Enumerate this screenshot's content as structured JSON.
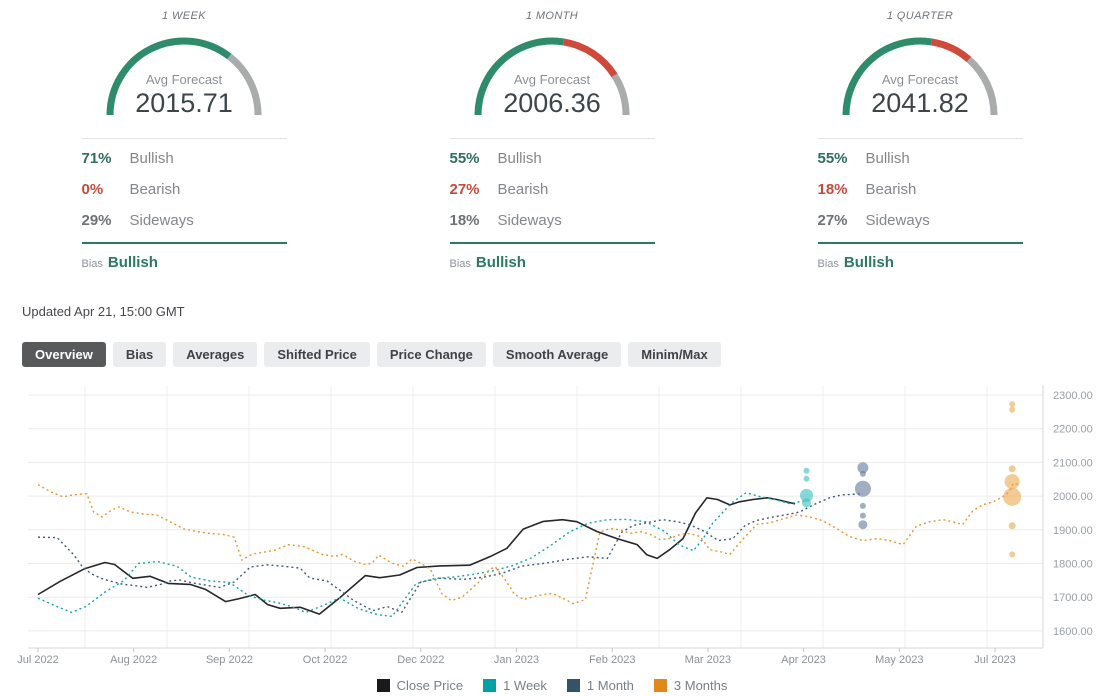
{
  "forecast_panels": [
    {
      "title": "1 WEEK",
      "avg_label": "Avg Forecast",
      "avg_forecast": "2015.71",
      "gauge": {
        "bullish": 71,
        "bearish": 0,
        "sideways": 29
      },
      "stats": [
        {
          "pct": "71%",
          "label": "Bullish"
        },
        {
          "pct": "0%",
          "label": "Bearish"
        },
        {
          "pct": "29%",
          "label": "Sideways"
        }
      ],
      "bias_label": "Bias",
      "bias": "Bullish"
    },
    {
      "title": "1 MONTH",
      "avg_label": "Avg Forecast",
      "avg_forecast": "2006.36",
      "gauge": {
        "bullish": 55,
        "bearish": 27,
        "sideways": 18
      },
      "stats": [
        {
          "pct": "55%",
          "label": "Bullish"
        },
        {
          "pct": "27%",
          "label": "Bearish"
        },
        {
          "pct": "18%",
          "label": "Sideways"
        }
      ],
      "bias_label": "Bias",
      "bias": "Bullish"
    },
    {
      "title": "1 QUARTER",
      "avg_label": "Avg Forecast",
      "avg_forecast": "2041.82",
      "gauge": {
        "bullish": 55,
        "bearish": 18,
        "sideways": 27
      },
      "stats": [
        {
          "pct": "55%",
          "label": "Bullish"
        },
        {
          "pct": "18%",
          "label": "Bearish"
        },
        {
          "pct": "27%",
          "label": "Sideways"
        }
      ],
      "bias_label": "Bias",
      "bias": "Bullish"
    }
  ],
  "updated": "Updated Apr 21, 15:00 GMT",
  "tabs": [
    {
      "label": "Overview",
      "active": true
    },
    {
      "label": "Bias",
      "active": false
    },
    {
      "label": "Averages",
      "active": false
    },
    {
      "label": "Shifted Price",
      "active": false
    },
    {
      "label": "Price Change",
      "active": false
    },
    {
      "label": "Smooth Average",
      "active": false
    },
    {
      "label": "Minim/Max",
      "active": false
    }
  ],
  "colors": {
    "gauge_bullish": "#2e8c6a",
    "gauge_bearish": "#cf4a3a",
    "gauge_sideways": "#a9abae",
    "accent_teal": "#2c7a66",
    "active_tab_bg": "#58595b"
  },
  "chart_data": {
    "type": "line",
    "x_unit": "tick-index (0 = Jul 2022 ... 10 = Jul 2023)",
    "x_ticks": [
      "Jul 2022",
      "Aug 2022",
      "Sep 2022",
      "Oct 2022",
      "Dec 2022",
      "Jan 2023",
      "Feb 2023",
      "Mar 2023",
      "Apr 2023",
      "May 2023",
      "Jul 2023"
    ],
    "y_ticks": [
      {
        "value": 2300,
        "label": "2300.00"
      },
      {
        "value": 2200,
        "label": "2200.00"
      },
      {
        "value": 2100,
        "label": "2100.00"
      },
      {
        "value": 2000,
        "label": "2000.00"
      },
      {
        "value": 1900,
        "label": "1900.00"
      },
      {
        "value": 1800,
        "label": "1800.00"
      },
      {
        "value": 1700,
        "label": "1700.00"
      },
      {
        "value": 1600,
        "label": "1600.00"
      }
    ],
    "ylim": [
      1575,
      2330
    ],
    "grid": true,
    "legend_position": "bottom",
    "series": [
      {
        "name": "Close Price",
        "color": "#26262b",
        "style": "solid",
        "points": [
          [
            0,
            1708
          ],
          [
            0.23,
            1747
          ],
          [
            0.49,
            1785
          ],
          [
            0.7,
            1803
          ],
          [
            0.8,
            1797
          ],
          [
            0.99,
            1756
          ],
          [
            1.17,
            1762
          ],
          [
            1.36,
            1741
          ],
          [
            1.59,
            1738
          ],
          [
            1.75,
            1723
          ],
          [
            1.96,
            1687
          ],
          [
            2.11,
            1696
          ],
          [
            2.27,
            1708
          ],
          [
            2.4,
            1678
          ],
          [
            2.53,
            1667
          ],
          [
            2.74,
            1670
          ],
          [
            2.94,
            1650
          ],
          [
            3.16,
            1700
          ],
          [
            3.42,
            1764
          ],
          [
            3.57,
            1758
          ],
          [
            3.78,
            1766
          ],
          [
            3.96,
            1788
          ],
          [
            4.2,
            1793
          ],
          [
            4.51,
            1795
          ],
          [
            4.72,
            1820
          ],
          [
            4.9,
            1845
          ],
          [
            5.07,
            1902
          ],
          [
            5.28,
            1925
          ],
          [
            5.48,
            1930
          ],
          [
            5.63,
            1924
          ],
          [
            5.84,
            1895
          ],
          [
            6.05,
            1874
          ],
          [
            6.26,
            1856
          ],
          [
            6.36,
            1826
          ],
          [
            6.47,
            1815
          ],
          [
            6.6,
            1841
          ],
          [
            6.74,
            1874
          ],
          [
            6.87,
            1950
          ],
          [
            6.99,
            1995
          ],
          [
            7.1,
            1990
          ],
          [
            7.23,
            1974
          ],
          [
            7.33,
            1983
          ],
          [
            7.47,
            1990
          ],
          [
            7.62,
            1995
          ],
          [
            7.72,
            1990
          ],
          [
            7.91,
            1977
          ]
        ]
      },
      {
        "name": "1 Week",
        "color": "#14a3a6",
        "style": "dotted",
        "points": [
          [
            0,
            1697
          ],
          [
            0.2,
            1672
          ],
          [
            0.35,
            1655
          ],
          [
            0.5,
            1672
          ],
          [
            0.7,
            1715
          ],
          [
            0.9,
            1750
          ],
          [
            1.05,
            1800
          ],
          [
            1.25,
            1806
          ],
          [
            1.45,
            1792
          ],
          [
            1.6,
            1760
          ],
          [
            1.8,
            1748
          ],
          [
            2.0,
            1744
          ],
          [
            2.2,
            1705
          ],
          [
            2.35,
            1692
          ],
          [
            2.5,
            1684
          ],
          [
            2.65,
            1672
          ],
          [
            2.8,
            1655
          ],
          [
            3.0,
            1678
          ],
          [
            3.15,
            1698
          ],
          [
            3.35,
            1666
          ],
          [
            3.55,
            1648
          ],
          [
            3.7,
            1643
          ],
          [
            3.95,
            1740
          ],
          [
            4.15,
            1756
          ],
          [
            4.35,
            1760
          ],
          [
            4.55,
            1768
          ],
          [
            4.75,
            1778
          ],
          [
            4.95,
            1793
          ],
          [
            5.15,
            1816
          ],
          [
            5.35,
            1852
          ],
          [
            5.55,
            1893
          ],
          [
            5.75,
            1920
          ],
          [
            5.95,
            1930
          ],
          [
            6.15,
            1931
          ],
          [
            6.35,
            1924
          ],
          [
            6.55,
            1895
          ],
          [
            6.7,
            1855
          ],
          [
            6.85,
            1838
          ],
          [
            6.95,
            1874
          ],
          [
            7.05,
            1920
          ],
          [
            7.15,
            1950
          ],
          [
            7.25,
            1980
          ],
          [
            7.4,
            2010
          ],
          [
            7.55,
            1998
          ],
          [
            7.7,
            1990
          ],
          [
            7.85,
            1978
          ],
          [
            8.0,
            1985
          ]
        ]
      },
      {
        "name": "1 Month",
        "color": "#3d5a79",
        "style": "dotted",
        "points": [
          [
            0,
            1878
          ],
          [
            0.2,
            1877
          ],
          [
            0.37,
            1827
          ],
          [
            0.46,
            1792
          ],
          [
            0.55,
            1771
          ],
          [
            0.65,
            1757
          ],
          [
            0.75,
            1748
          ],
          [
            0.89,
            1738
          ],
          [
            1.0,
            1735
          ],
          [
            1.14,
            1729
          ],
          [
            1.28,
            1738
          ],
          [
            1.38,
            1748
          ],
          [
            1.48,
            1751
          ],
          [
            1.62,
            1742
          ],
          [
            1.77,
            1735
          ],
          [
            1.9,
            1729
          ],
          [
            2.05,
            1745
          ],
          [
            2.22,
            1790
          ],
          [
            2.4,
            1796
          ],
          [
            2.56,
            1792
          ],
          [
            2.74,
            1786
          ],
          [
            2.84,
            1757
          ],
          [
            3.02,
            1748
          ],
          [
            3.16,
            1720
          ],
          [
            3.3,
            1690
          ],
          [
            3.5,
            1660
          ],
          [
            3.65,
            1672
          ],
          [
            3.8,
            1655
          ],
          [
            4.0,
            1745
          ],
          [
            4.2,
            1756
          ],
          [
            4.45,
            1753
          ],
          [
            4.65,
            1759
          ],
          [
            4.85,
            1771
          ],
          [
            5.05,
            1792
          ],
          [
            5.3,
            1801
          ],
          [
            5.55,
            1813
          ],
          [
            5.75,
            1820
          ],
          [
            5.95,
            1815
          ],
          [
            6.1,
            1893
          ],
          [
            6.22,
            1913
          ],
          [
            6.4,
            1923
          ],
          [
            6.53,
            1930
          ],
          [
            6.68,
            1924
          ],
          [
            6.81,
            1915
          ],
          [
            6.95,
            1897
          ],
          [
            7.11,
            1868
          ],
          [
            7.26,
            1874
          ],
          [
            7.39,
            1913
          ],
          [
            7.51,
            1928
          ],
          [
            7.68,
            1938
          ],
          [
            7.83,
            1945
          ],
          [
            7.96,
            1953
          ],
          [
            8.1,
            1974
          ],
          [
            8.28,
            1996
          ],
          [
            8.41,
            2004
          ],
          [
            8.62,
            2007
          ]
        ]
      },
      {
        "name": "3 Months",
        "color": "#e8952e",
        "style": "dotted",
        "points": [
          [
            0,
            2034
          ],
          [
            0.13,
            2013
          ],
          [
            0.26,
            1998
          ],
          [
            0.37,
            2004
          ],
          [
            0.51,
            2007
          ],
          [
            0.58,
            1953
          ],
          [
            0.67,
            1938
          ],
          [
            0.77,
            1959
          ],
          [
            0.85,
            1968
          ],
          [
            0.96,
            1953
          ],
          [
            1.1,
            1947
          ],
          [
            1.24,
            1944
          ],
          [
            1.38,
            1924
          ],
          [
            1.52,
            1903
          ],
          [
            1.66,
            1895
          ],
          [
            1.8,
            1889
          ],
          [
            1.94,
            1886
          ],
          [
            2.05,
            1878
          ],
          [
            2.13,
            1810
          ],
          [
            2.24,
            1828
          ],
          [
            2.37,
            1834
          ],
          [
            2.48,
            1840
          ],
          [
            2.62,
            1856
          ],
          [
            2.78,
            1850
          ],
          [
            2.97,
            1827
          ],
          [
            3.1,
            1821
          ],
          [
            3.18,
            1827
          ],
          [
            3.31,
            1806
          ],
          [
            3.42,
            1797
          ],
          [
            3.49,
            1801
          ],
          [
            3.56,
            1825
          ],
          [
            3.7,
            1801
          ],
          [
            3.82,
            1792
          ],
          [
            3.91,
            1814
          ],
          [
            4.02,
            1797
          ],
          [
            4.1,
            1783
          ],
          [
            4.22,
            1710
          ],
          [
            4.32,
            1690
          ],
          [
            4.43,
            1700
          ],
          [
            4.62,
            1748
          ],
          [
            4.72,
            1783
          ],
          [
            4.78,
            1790
          ],
          [
            4.88,
            1753
          ],
          [
            4.98,
            1708
          ],
          [
            5.08,
            1693
          ],
          [
            5.18,
            1702
          ],
          [
            5.28,
            1708
          ],
          [
            5.38,
            1711
          ],
          [
            5.49,
            1696
          ],
          [
            5.59,
            1681
          ],
          [
            5.72,
            1693
          ],
          [
            5.87,
            1893
          ],
          [
            5.98,
            1904
          ],
          [
            6.08,
            1900
          ],
          [
            6.19,
            1889
          ],
          [
            6.29,
            1895
          ],
          [
            6.4,
            1886
          ],
          [
            6.5,
            1871
          ],
          [
            6.6,
            1874
          ],
          [
            6.71,
            1886
          ],
          [
            6.81,
            1889
          ],
          [
            6.92,
            1880
          ],
          [
            7.02,
            1841
          ],
          [
            7.13,
            1835
          ],
          [
            7.23,
            1827
          ],
          [
            7.37,
            1874
          ],
          [
            7.51,
            1916
          ],
          [
            7.65,
            1921
          ],
          [
            7.79,
            1933
          ],
          [
            7.93,
            1944
          ],
          [
            8.07,
            1938
          ],
          [
            8.2,
            1927
          ],
          [
            8.35,
            1903
          ],
          [
            8.48,
            1880
          ],
          [
            8.62,
            1868
          ],
          [
            8.77,
            1874
          ],
          [
            8.9,
            1868
          ],
          [
            9.04,
            1856
          ],
          [
            9.18,
            1911
          ],
          [
            9.32,
            1924
          ],
          [
            9.46,
            1930
          ],
          [
            9.56,
            1924
          ],
          [
            9.66,
            1915
          ],
          [
            9.77,
            1957
          ],
          [
            9.87,
            1974
          ],
          [
            9.98,
            1983
          ],
          [
            10.08,
            1998
          ],
          [
            10.15,
            2013
          ],
          [
            10.19,
            2037
          ],
          [
            10.26,
            2034
          ]
        ]
      }
    ],
    "scatter": [
      {
        "name": "1 Week forecast dots",
        "color": "#35bfc0",
        "t": 8.03,
        "points": [
          {
            "value": 2075,
            "r": 3
          },
          {
            "value": 2052,
            "r": 3
          },
          {
            "value": 2002,
            "r": 6.5
          },
          {
            "value": 1980,
            "r": 4.5
          }
        ]
      },
      {
        "name": "1 Month forecast dots",
        "color": "#61789a",
        "t": 8.62,
        "points": [
          {
            "value": 2084,
            "r": 5.5
          },
          {
            "value": 2066,
            "r": 3
          },
          {
            "value": 2022,
            "r": 8
          },
          {
            "value": 1971,
            "r": 3
          },
          {
            "value": 1942,
            "r": 3
          },
          {
            "value": 1915,
            "r": 4.5
          }
        ]
      },
      {
        "name": "3 Months forecast dots",
        "color": "#eaa94f",
        "t": 10.18,
        "points": [
          {
            "value": 2273,
            "r": 3
          },
          {
            "value": 2256,
            "r": 3
          },
          {
            "value": 2081,
            "r": 3.5
          },
          {
            "value": 2043,
            "r": 7.5
          },
          {
            "value": 1998,
            "r": 9
          },
          {
            "value": 1912,
            "r": 3.5
          },
          {
            "value": 1827,
            "r": 3
          }
        ]
      }
    ],
    "legend": [
      {
        "label": "Close Price",
        "color": "#1a1a1e"
      },
      {
        "label": "1 Week",
        "color": "#00a2a6"
      },
      {
        "label": "1 Month",
        "color": "#33536b"
      },
      {
        "label": "3 Months",
        "color": "#e2871c"
      }
    ]
  }
}
